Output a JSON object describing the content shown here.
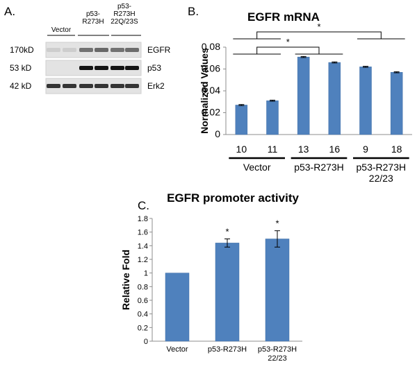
{
  "colors": {
    "bar": "#4f81bd",
    "bar_edge": "#3f6ea6",
    "axis": "#8c8c8c",
    "text": "#000000"
  },
  "panel_labels": {
    "a": "A.",
    "b": "B.",
    "c": "C."
  },
  "western_blot": {
    "lane_headers": [
      "Vector",
      "p53-\nR273H",
      "p53-\nR273H\n22Q/23S"
    ],
    "rows": [
      {
        "mw": "170kD",
        "protein": "EGFR",
        "intensities": [
          0.12,
          0.12,
          0.55,
          0.6,
          0.55,
          0.58
        ]
      },
      {
        "mw": "53 kD",
        "protein": "p53",
        "intensities": [
          0.02,
          0.02,
          1.0,
          1.0,
          1.0,
          1.0
        ]
      },
      {
        "mw": "42 kD",
        "protein": "Erk2",
        "intensities": [
          0.85,
          0.85,
          0.85,
          0.85,
          0.85,
          0.85
        ]
      }
    ]
  },
  "chart_data": [
    {
      "type": "bar",
      "title": "EGFR mRNA",
      "ylabel": "Normalized Values",
      "xlabel": "",
      "ylim": [
        0,
        0.08
      ],
      "yticks": [
        "0",
        "0.02",
        "0.04",
        "0.06",
        "0.08"
      ],
      "categories": [
        "10",
        "11",
        "13",
        "16",
        "9",
        "18"
      ],
      "values": [
        0.027,
        0.031,
        0.071,
        0.066,
        0.062,
        0.057
      ],
      "errors": [
        0.0005,
        0.0005,
        0.0005,
        0.0005,
        0.0005,
        0.0005
      ],
      "groups": [
        {
          "label": "Vector",
          "members": [
            0,
            1
          ]
        },
        {
          "label": "p53-R273H",
          "members": [
            2,
            3
          ]
        },
        {
          "label": "p53-R273H\n22/23",
          "members": [
            4,
            5
          ]
        }
      ],
      "significance": [
        "*",
        "*"
      ],
      "grid": false,
      "legend": "none"
    },
    {
      "type": "bar",
      "title": "EGFR promoter activity",
      "ylabel": "Relative Fold",
      "xlabel": "",
      "ylim": [
        0,
        1.8
      ],
      "yticks": [
        "0",
        "0.2",
        "0.4",
        "0.6",
        "0.8",
        "1",
        "1.2",
        "1.4",
        "1.6",
        "1.8"
      ],
      "categories": [
        "Vector",
        "p53-R273H",
        "p53-R273H\n22/23"
      ],
      "values": [
        1.0,
        1.44,
        1.5
      ],
      "errors": [
        0,
        0.06,
        0.12
      ],
      "annotations": [
        "",
        "*",
        "*"
      ],
      "grid": false,
      "legend": "none"
    }
  ]
}
